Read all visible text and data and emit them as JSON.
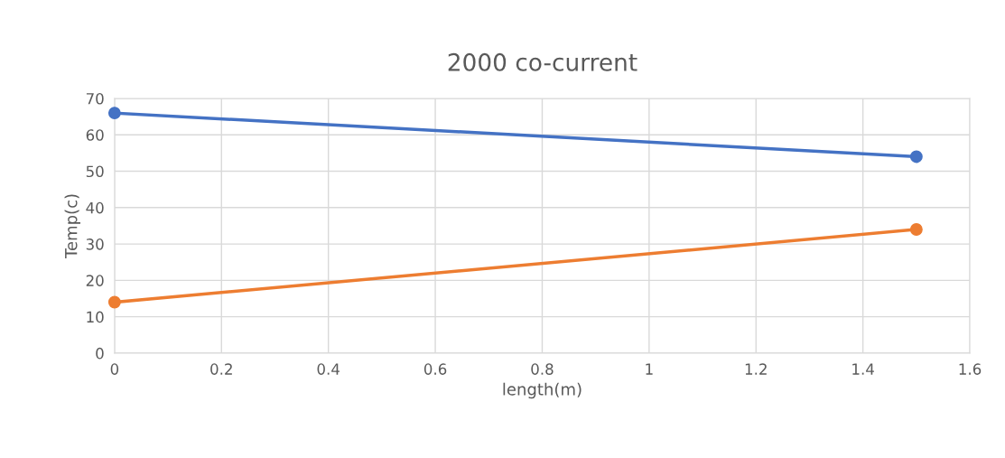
{
  "chart_data": {
    "type": "line",
    "title": "2000 co-current",
    "xlabel": "length(m)",
    "ylabel": "Temp(c)",
    "x": [
      0,
      1.5
    ],
    "series": [
      {
        "values": [
          66,
          54
        ],
        "color": "#4472c4"
      },
      {
        "values": [
          14,
          34
        ],
        "color": "#ed7d31"
      }
    ],
    "xlim": [
      0,
      1.6
    ],
    "xticks": [
      0,
      0.2,
      0.4,
      0.6,
      0.8,
      1,
      1.2,
      1.4,
      1.6
    ],
    "ylim": [
      0,
      70
    ],
    "yticks": [
      0,
      10,
      20,
      30,
      40,
      50,
      60,
      70
    ],
    "grid": true,
    "marker": "circle",
    "line_style": "solid"
  }
}
